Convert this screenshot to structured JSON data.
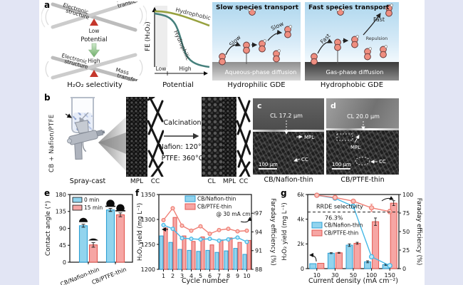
{
  "colors": {
    "background": "#e2e5f4",
    "canvas": "#ffffff",
    "blue_fill": "#92d4ee",
    "blue_edge": "#2e9fd4",
    "pink_fill": "#f6a6a4",
    "pink_edge": "#e2574f",
    "blue_line": "#45b8e6",
    "blue_marker_fill": "#bfe9f8",
    "pink_line": "#ef7f75",
    "pink_marker_fill": "#fbc4bd",
    "olive": "#97a13f",
    "teal": "#45807c",
    "red_triangle": "#c5372c",
    "molecule": "#ef8e80"
  },
  "panel_a": {
    "label": "a",
    "seesaw": {
      "electronic_line1": "Electronic",
      "electronic_line2": "structure",
      "mass_line1": "Mass",
      "mass_line2": "transfer",
      "low": "Low",
      "potential": "Potential",
      "high": "High",
      "caption": "H₂O₂ selectivity"
    },
    "fe_plot": {
      "ylabel": "FE (H₂O₂)",
      "hydrophobic": "Hydrophobic",
      "hydrophilic": "Hydrophilic",
      "low": "Low",
      "high": "High",
      "caption": "Potential"
    },
    "philic": {
      "title": "Slow species transport",
      "slow1": "Slow",
      "slow2": "Slow",
      "strip": "Aqueous-phase diffusion",
      "caption": "Hydrophilic GDE"
    },
    "phobic": {
      "title": "Fast species transport",
      "fast1": "Fast",
      "fast2": "Fast",
      "repulsion": "Repulsion",
      "strip": "Gas-phase diffusion",
      "caption": "Hydrophobic GDE"
    }
  },
  "panel_b": {
    "label": "b",
    "ink_label": "CB + Nafion/PTFE",
    "spray_caption": "Spray-cast",
    "calcination": "Calcination",
    "nafion_temp": "Nafion: 120°C",
    "ptfe_temp": "PTFE: 360°C",
    "layers_before": [
      "MPL",
      "CC"
    ],
    "layers_after": [
      "CL",
      "MPL",
      "CC"
    ]
  },
  "panel_c": {
    "label": "c",
    "cl_thickness": "CL 17.2 μm",
    "mpl": "MPL",
    "cc": "CC",
    "scalebar": "100 μm",
    "caption": "CB/Nafion-thin"
  },
  "panel_d": {
    "label": "d",
    "cl_thickness": "CL 20.0 μm",
    "mpl": "MPL",
    "cc": "CC",
    "scalebar": "100 μm",
    "caption": "CB/PTFE-thin"
  },
  "chart_data": [
    {
      "id": "e",
      "panel_label": "e",
      "type": "bar",
      "ylabel": "Contact angle (°)",
      "ylim": [
        0,
        180
      ],
      "yticks": [
        "0",
        "45",
        "90",
        "135",
        "180"
      ],
      "categories": [
        "CB/Nafion-thin",
        "CB/PTFE-thin"
      ],
      "series": [
        {
          "name": "0 min",
          "values": [
            97,
            139
          ],
          "errors": [
            4,
            4
          ]
        },
        {
          "name": "15 min",
          "values": [
            46,
            126
          ],
          "errors": [
            6,
            5
          ]
        }
      ],
      "legend_position": "top-left"
    },
    {
      "id": "f",
      "panel_label": "f",
      "type": "bar+line",
      "xlabel": "Cycle number",
      "ylabel_left": "H₂O₂ yield (mg L⁻¹)",
      "ylabel_right": "Faraday efficiency (%)",
      "ylim_left": [
        1200,
        1350
      ],
      "yticks_left_labels": [
        "1200",
        "1250",
        "1300",
        "1350"
      ],
      "yticks_left_values": [
        1200,
        1250,
        1300,
        1350
      ],
      "ylim_right": [
        88,
        100
      ],
      "yticks_right_labels": [
        "88",
        "91",
        "94",
        "97"
      ],
      "yticks_right_values": [
        88,
        91,
        94,
        97
      ],
      "categories": [
        "1",
        "2",
        "3",
        "4",
        "5",
        "6",
        "7",
        "8",
        "9",
        "10"
      ],
      "annotation": "@ 30 mA cm⁻²",
      "bar_series": [
        {
          "name": "CB/Nafion-thin",
          "values": [
            1267,
            1254,
            1240,
            1238,
            1236,
            1238,
            1234,
            1237,
            1242,
            1230
          ]
        },
        {
          "name": "CB/PTFE-thin",
          "values": [
            1283,
            1304,
            1267,
            1256,
            1265,
            1249,
            1259,
            1263,
            1254,
            1258
          ]
        }
      ],
      "line_series": [
        {
          "name": "CB/Nafion-thin",
          "values": [
            95.1,
            94.5,
            93.0,
            92.9,
            92.8,
            92.9,
            92.6,
            92.8,
            93.1,
            92.4
          ]
        },
        {
          "name": "CB/PTFE-thin",
          "values": [
            95.9,
            97.8,
            95.0,
            94.2,
            94.9,
            93.7,
            94.3,
            94.5,
            94.1,
            94.2
          ]
        }
      ],
      "legend_position": "top-center"
    },
    {
      "id": "g",
      "panel_label": "g",
      "type": "bar+line",
      "xlabel": "Current density (mA cm⁻²)",
      "ylabel_left": "H₂O₂ yield (mg L⁻¹)",
      "ylabel_right": "Faraday efficiency (%)",
      "ylim_left": [
        0,
        6000
      ],
      "yticks_left_labels": [
        "0",
        "2k",
        "4k",
        "6k"
      ],
      "yticks_left_values": [
        0,
        2000,
        4000,
        6000
      ],
      "ylim_right": [
        0,
        100
      ],
      "yticks_right_labels": [
        "0",
        "25",
        "50",
        "75",
        "100"
      ],
      "yticks_right_values": [
        0,
        25,
        50,
        75,
        100
      ],
      "categories": [
        "10",
        "30",
        "50",
        "100",
        "150"
      ],
      "dashed_line": {
        "value": 76.3,
        "label": "RRDE selectivity",
        "value_label": "76.3%"
      },
      "bar_series": [
        {
          "name": "CB/Nafion-thin",
          "values": [
            400,
            1250,
            1900,
            550,
            320
          ],
          "errors": [
            0,
            40,
            100,
            80,
            50
          ]
        },
        {
          "name": "CB/PTFE-thin",
          "values": [
            430,
            1280,
            2050,
            3800,
            5300
          ],
          "errors": [
            0,
            40,
            80,
            300,
            200
          ]
        }
      ],
      "line_series": [
        {
          "name": "CB/Nafion-thin",
          "values": [
            99,
            95,
            84,
            16,
            4
          ],
          "errors": [
            1,
            1,
            3,
            2,
            1
          ]
        },
        {
          "name": "CB/PTFE-thin",
          "values": [
            99,
            96,
            91,
            82,
            77
          ],
          "errors": [
            1,
            1,
            2,
            5,
            3
          ]
        }
      ],
      "legend_position": "middle-left"
    }
  ]
}
